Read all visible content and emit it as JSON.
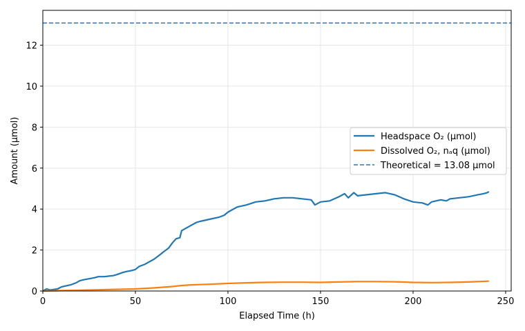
{
  "chart_data": {
    "type": "line",
    "title": "",
    "xlabel": "Elapsed Time (h)",
    "ylabel": "Amount (µmol)",
    "xlim": [
      0,
      253
    ],
    "ylim": [
      0,
      13.7
    ],
    "xticks": [
      0,
      50,
      100,
      150,
      200,
      250
    ],
    "yticks": [
      0,
      2,
      4,
      6,
      8,
      10,
      12
    ],
    "grid": true,
    "legend_position": "center-right",
    "series": [
      {
        "name": "Headspace O₂ (µmol)",
        "color": "#1f77b4",
        "style": "solid",
        "x": [
          0,
          2,
          4,
          8,
          10,
          15,
          18,
          20,
          22,
          25,
          28,
          30,
          33,
          35,
          38,
          40,
          43,
          45,
          48,
          50,
          52,
          55,
          58,
          60,
          63,
          65,
          68,
          70,
          72,
          74,
          75,
          78,
          80,
          83,
          85,
          90,
          95,
          98,
          100,
          105,
          110,
          115,
          120,
          125,
          130,
          135,
          140,
          145,
          147,
          150,
          155,
          160,
          163,
          165,
          168,
          170,
          175,
          180,
          185,
          190,
          195,
          200,
          205,
          208,
          210,
          215,
          218,
          220,
          225,
          230,
          235,
          238,
          240,
          241
        ],
        "y": [
          0,
          0.1,
          0.05,
          0.1,
          0.2,
          0.3,
          0.4,
          0.5,
          0.55,
          0.6,
          0.65,
          0.7,
          0.7,
          0.72,
          0.75,
          0.8,
          0.9,
          0.95,
          1.0,
          1.05,
          1.2,
          1.3,
          1.45,
          1.55,
          1.75,
          1.9,
          2.1,
          2.35,
          2.55,
          2.6,
          2.95,
          3.1,
          3.2,
          3.35,
          3.4,
          3.5,
          3.6,
          3.7,
          3.85,
          4.1,
          4.2,
          4.35,
          4.4,
          4.5,
          4.55,
          4.55,
          4.5,
          4.45,
          4.2,
          4.35,
          4.4,
          4.6,
          4.75,
          4.55,
          4.8,
          4.65,
          4.7,
          4.75,
          4.8,
          4.7,
          4.5,
          4.35,
          4.3,
          4.2,
          4.35,
          4.45,
          4.4,
          4.5,
          4.55,
          4.6,
          4.7,
          4.75,
          4.8,
          4.85
        ]
      },
      {
        "name": "Dissolved O₂, nₐq (µmol)",
        "color": "#ff7f0e",
        "style": "solid",
        "x": [
          0,
          10,
          20,
          30,
          40,
          50,
          60,
          70,
          75,
          80,
          90,
          100,
          110,
          120,
          130,
          140,
          150,
          160,
          170,
          180,
          190,
          200,
          210,
          220,
          230,
          241
        ],
        "y": [
          0,
          0.02,
          0.04,
          0.06,
          0.08,
          0.1,
          0.15,
          0.22,
          0.27,
          0.3,
          0.33,
          0.37,
          0.4,
          0.42,
          0.43,
          0.43,
          0.42,
          0.44,
          0.46,
          0.46,
          0.45,
          0.42,
          0.41,
          0.42,
          0.44,
          0.48
        ]
      }
    ],
    "reference_lines": [
      {
        "name": "Theoretical = 13.08 µmol",
        "y": 13.08,
        "color": "#1f77b4",
        "style": "dashed"
      }
    ]
  }
}
